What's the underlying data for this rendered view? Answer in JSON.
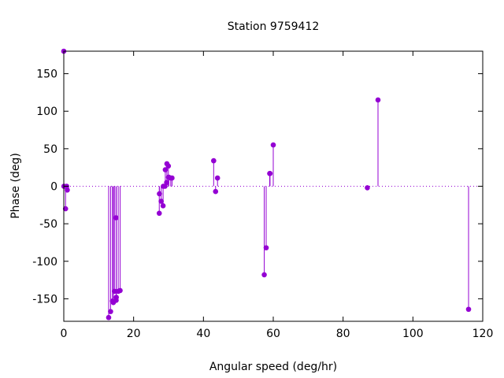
{
  "chart_data": {
    "type": "scatter",
    "style": "impulses with points",
    "title": "Station 9759412",
    "xlabel": "Angular speed (deg/hr)",
    "ylabel": "Phase (deg)",
    "xlim": [
      0,
      120
    ],
    "ylim": [
      -180,
      180
    ],
    "x_ticks": [
      0,
      20,
      40,
      60,
      80,
      100,
      120
    ],
    "y_ticks": [
      -150,
      -100,
      -50,
      0,
      50,
      100,
      150
    ],
    "x_tick_labels": [
      "0",
      "20",
      "40",
      "60",
      "80",
      "100",
      "120"
    ],
    "y_tick_labels": [
      "-150",
      "-100",
      "-50",
      "0",
      "50",
      "100",
      "150"
    ],
    "grid": false,
    "zero_line": true,
    "color": "#9400d3",
    "zero_line_color": "#9400d3",
    "series": [
      {
        "points": [
          {
            "x": 0.0,
            "y": 180
          },
          {
            "x": 0.04,
            "y": 0
          },
          {
            "x": 0.5,
            "y": -30
          },
          {
            "x": 0.82,
            "y": 0
          },
          {
            "x": 1.0,
            "y": -5
          },
          {
            "x": 12.85,
            "y": -175
          },
          {
            "x": 13.4,
            "y": -167
          },
          {
            "x": 13.94,
            "y": -153
          },
          {
            "x": 14.2,
            "y": -155
          },
          {
            "x": 14.5,
            "y": -140
          },
          {
            "x": 14.96,
            "y": -42
          },
          {
            "x": 15.0,
            "y": -152
          },
          {
            "x": 15.04,
            "y": -148
          },
          {
            "x": 15.59,
            "y": -140
          },
          {
            "x": 16.14,
            "y": -139
          },
          {
            "x": 27.35,
            "y": -36
          },
          {
            "x": 27.4,
            "y": -10
          },
          {
            "x": 27.9,
            "y": -20
          },
          {
            "x": 28.44,
            "y": -26
          },
          {
            "x": 28.51,
            "y": 0
          },
          {
            "x": 28.98,
            "y": 0
          },
          {
            "x": 29.08,
            "y": 22
          },
          {
            "x": 29.46,
            "y": 5
          },
          {
            "x": 29.53,
            "y": 30
          },
          {
            "x": 29.96,
            "y": 27
          },
          {
            "x": 30.0,
            "y": 12
          },
          {
            "x": 30.08,
            "y": 12
          },
          {
            "x": 30.63,
            "y": 11
          },
          {
            "x": 31.0,
            "y": 11
          },
          {
            "x": 42.93,
            "y": 34
          },
          {
            "x": 43.48,
            "y": -7
          },
          {
            "x": 44.03,
            "y": 11
          },
          {
            "x": 57.42,
            "y": -118
          },
          {
            "x": 57.97,
            "y": -82
          },
          {
            "x": 58.98,
            "y": 17
          },
          {
            "x": 59.07,
            "y": 17
          },
          {
            "x": 60.0,
            "y": 55
          },
          {
            "x": 86.95,
            "y": -2
          },
          {
            "x": 90.0,
            "y": 115
          },
          {
            "x": 115.94,
            "y": -164
          }
        ]
      }
    ]
  }
}
